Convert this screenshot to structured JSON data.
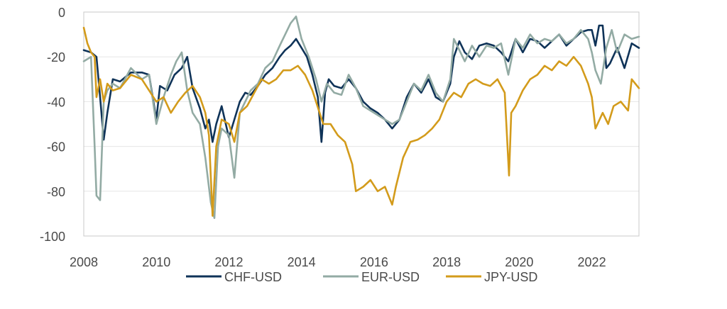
{
  "chart_data": {
    "type": "line",
    "title": "",
    "xlabel": "",
    "ylabel": "",
    "xlim": [
      2008,
      2023.3
    ],
    "ylim": [
      -100,
      0
    ],
    "grid": "horizontal",
    "legend_position": "bottom",
    "x_ticks": [
      2008,
      2010,
      2012,
      2014,
      2016,
      2018,
      2020,
      2022
    ],
    "x_tick_labels": [
      "2008",
      "2010",
      "2012",
      "2014",
      "2016",
      "2018",
      "2020",
      "2022"
    ],
    "y_ticks": [
      0,
      -20,
      -40,
      -60,
      -80,
      -100
    ],
    "y_tick_labels": [
      "0",
      "-20",
      "-40",
      "-60",
      "-80",
      "-100"
    ],
    "series": [
      {
        "name": "CHF-USD",
        "color": "#0f3358",
        "x": [
          2008.0,
          2008.2,
          2008.35,
          2008.45,
          2008.55,
          2008.65,
          2008.8,
          2009.0,
          2009.3,
          2009.6,
          2009.8,
          2010.0,
          2010.1,
          2010.3,
          2010.5,
          2010.7,
          2010.85,
          2011.0,
          2011.2,
          2011.35,
          2011.45,
          2011.55,
          2011.65,
          2011.8,
          2012.0,
          2012.15,
          2012.3,
          2012.45,
          2012.6,
          2012.8,
          2013.0,
          2013.2,
          2013.4,
          2013.55,
          2013.7,
          2013.85,
          2014.0,
          2014.15,
          2014.3,
          2014.45,
          2014.55,
          2014.65,
          2014.75,
          2014.9,
          2015.1,
          2015.3,
          2015.5,
          2015.7,
          2015.9,
          2016.1,
          2016.3,
          2016.5,
          2016.7,
          2016.9,
          2017.1,
          2017.3,
          2017.5,
          2017.7,
          2017.9,
          2018.1,
          2018.2,
          2018.35,
          2018.5,
          2018.7,
          2018.9,
          2019.1,
          2019.3,
          2019.5,
          2019.7,
          2019.9,
          2020.1,
          2020.3,
          2020.5,
          2020.7,
          2020.9,
          2021.1,
          2021.3,
          2021.5,
          2021.7,
          2021.9,
          2022.0,
          2022.1,
          2022.2,
          2022.3,
          2022.4,
          2022.5,
          2022.7,
          2022.9,
          2023.1,
          2023.3
        ],
        "values": [
          -17,
          -18,
          -20,
          -38,
          -57,
          -45,
          -30,
          -31,
          -27,
          -27,
          -28,
          -48,
          -33,
          -35,
          -28,
          -25,
          -20,
          -34,
          -43,
          -52,
          -48,
          -58,
          -50,
          -42,
          -56,
          -48,
          -40,
          -36,
          -37,
          -33,
          -28,
          -25,
          -20,
          -17,
          -15,
          -12,
          -16,
          -20,
          -28,
          -38,
          -58,
          -36,
          -30,
          -33,
          -34,
          -30,
          -34,
          -40,
          -43,
          -45,
          -48,
          -52,
          -48,
          -38,
          -32,
          -36,
          -30,
          -38,
          -40,
          -32,
          -20,
          -13,
          -18,
          -21,
          -15,
          -14,
          -15,
          -18,
          -22,
          -12,
          -18,
          -12,
          -13,
          -16,
          -13,
          -10,
          -15,
          -12,
          -9,
          -8,
          -8,
          -15,
          -6,
          -6,
          -25,
          -23,
          -16,
          -25,
          -14,
          -16
        ]
      },
      {
        "name": "EUR-USD",
        "color": "#93aba4",
        "x": [
          2008.0,
          2008.2,
          2008.3,
          2008.35,
          2008.45,
          2008.55,
          2008.65,
          2008.8,
          2009.0,
          2009.3,
          2009.6,
          2009.8,
          2010.0,
          2010.2,
          2010.4,
          2010.55,
          2010.7,
          2010.85,
          2011.0,
          2011.2,
          2011.35,
          2011.5,
          2011.6,
          2011.7,
          2011.8,
          2012.0,
          2012.15,
          2012.3,
          2012.45,
          2012.6,
          2012.8,
          2013.0,
          2013.2,
          2013.4,
          2013.55,
          2013.7,
          2013.85,
          2014.0,
          2014.2,
          2014.4,
          2014.55,
          2014.7,
          2014.9,
          2015.1,
          2015.3,
          2015.5,
          2015.7,
          2015.9,
          2016.1,
          2016.3,
          2016.5,
          2016.7,
          2016.9,
          2017.1,
          2017.3,
          2017.5,
          2017.7,
          2017.9,
          2018.1,
          2018.2,
          2018.35,
          2018.5,
          2018.7,
          2018.9,
          2019.1,
          2019.3,
          2019.5,
          2019.7,
          2019.9,
          2020.1,
          2020.3,
          2020.5,
          2020.7,
          2020.9,
          2021.1,
          2021.3,
          2021.5,
          2021.7,
          2021.9,
          2022.0,
          2022.1,
          2022.25,
          2022.4,
          2022.55,
          2022.7,
          2022.9,
          2023.1,
          2023.3
        ],
        "values": [
          -22,
          -20,
          -60,
          -82,
          -84,
          -40,
          -35,
          -32,
          -34,
          -25,
          -30,
          -28,
          -50,
          -38,
          -28,
          -22,
          -18,
          -35,
          -45,
          -50,
          -65,
          -85,
          -92,
          -60,
          -52,
          -55,
          -74,
          -45,
          -40,
          -35,
          -32,
          -25,
          -22,
          -15,
          -10,
          -5,
          -2,
          -12,
          -20,
          -30,
          -40,
          -32,
          -36,
          -37,
          -28,
          -34,
          -42,
          -44,
          -46,
          -48,
          -50,
          -48,
          -40,
          -32,
          -35,
          -28,
          -36,
          -40,
          -30,
          -12,
          -17,
          -22,
          -15,
          -20,
          -15,
          -16,
          -14,
          -28,
          -12,
          -16,
          -10,
          -14,
          -12,
          -13,
          -10,
          -14,
          -12,
          -8,
          -12,
          -18,
          -26,
          -32,
          -16,
          -8,
          -18,
          -10,
          -12,
          -11
        ]
      },
      {
        "name": "JPY-USD",
        "color": "#d39b1b",
        "x": [
          2008.0,
          2008.1,
          2008.2,
          2008.3,
          2008.35,
          2008.45,
          2008.55,
          2008.65,
          2008.8,
          2009.0,
          2009.3,
          2009.6,
          2009.8,
          2010.0,
          2010.2,
          2010.4,
          2010.6,
          2010.8,
          2011.0,
          2011.2,
          2011.35,
          2011.45,
          2011.55,
          2011.65,
          2011.8,
          2012.0,
          2012.15,
          2012.3,
          2012.5,
          2012.7,
          2012.9,
          2013.1,
          2013.3,
          2013.5,
          2013.7,
          2013.9,
          2014.1,
          2014.3,
          2014.5,
          2014.6,
          2014.8,
          2015.0,
          2015.2,
          2015.4,
          2015.5,
          2015.7,
          2015.9,
          2016.1,
          2016.3,
          2016.5,
          2016.6,
          2016.8,
          2017.0,
          2017.2,
          2017.4,
          2017.6,
          2017.8,
          2018.0,
          2018.2,
          2018.4,
          2018.6,
          2018.8,
          2019.0,
          2019.2,
          2019.4,
          2019.6,
          2019.72,
          2019.78,
          2019.9,
          2020.1,
          2020.3,
          2020.5,
          2020.7,
          2020.9,
          2021.1,
          2021.3,
          2021.5,
          2021.7,
          2021.9,
          2022.0,
          2022.1,
          2022.3,
          2022.45,
          2022.6,
          2022.8,
          2023.0,
          2023.1,
          2023.3
        ],
        "values": [
          -7,
          -14,
          -18,
          -20,
          -38,
          -30,
          -40,
          -32,
          -35,
          -34,
          -28,
          -30,
          -35,
          -40,
          -38,
          -45,
          -40,
          -36,
          -33,
          -38,
          -45,
          -55,
          -91,
          -60,
          -48,
          -50,
          -58,
          -45,
          -42,
          -36,
          -30,
          -32,
          -30,
          -26,
          -26,
          -24,
          -28,
          -35,
          -45,
          -50,
          -50,
          -55,
          -58,
          -68,
          -80,
          -78,
          -75,
          -80,
          -78,
          -86,
          -78,
          -65,
          -58,
          -57,
          -55,
          -52,
          -48,
          -40,
          -36,
          -38,
          -32,
          -30,
          -32,
          -33,
          -30,
          -36,
          -73,
          -45,
          -42,
          -35,
          -30,
          -28,
          -24,
          -26,
          -22,
          -24,
          -20,
          -24,
          -32,
          -38,
          -52,
          -45,
          -50,
          -42,
          -40,
          -44,
          -30,
          -34
        ]
      }
    ]
  }
}
